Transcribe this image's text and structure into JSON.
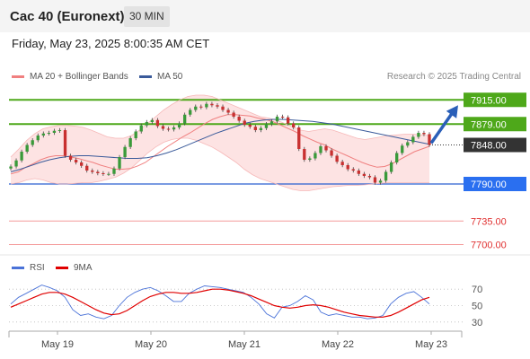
{
  "header": {
    "title": "Cac 40 (Euronext)",
    "timeframe": "30 MIN"
  },
  "timestamp": "Friday, May 23, 2025 8:00:35 AM CET",
  "legend": {
    "items": [
      {
        "label": "MA 20 + Bollinger Bands",
        "color": "#f08080"
      },
      {
        "label": "MA 50",
        "color": "#3a5a9a"
      }
    ],
    "copyright": "Research © 2025 Trading Central"
  },
  "rsi_legend": {
    "items": [
      {
        "label": "RSI",
        "color": "#4a72d8"
      },
      {
        "label": "9MA",
        "color": "#e00000"
      }
    ]
  },
  "chart_data": [
    {
      "type": "candlestick",
      "ylim": [
        7690,
        7930
      ],
      "x_ticks": [
        "May 19",
        "May 20",
        "May 21",
        "May 22",
        "May 23"
      ],
      "levels": [
        {
          "value": 7915.0,
          "label": "7915.00",
          "style": "resistance"
        },
        {
          "value": 7879.0,
          "label": "7879.00",
          "style": "resistance"
        },
        {
          "value": 7848.0,
          "label": "7848.00",
          "style": "last"
        },
        {
          "value": 7790.0,
          "label": "7790.00",
          "style": "support"
        },
        {
          "value": 7735.0,
          "label": "7735.00",
          "style": "target"
        },
        {
          "value": 7700.0,
          "label": "7700.00",
          "style": "target"
        }
      ],
      "close": [
        7816,
        7825,
        7838,
        7848,
        7855,
        7862,
        7865,
        7866,
        7869,
        7870,
        7832,
        7826,
        7822,
        7817,
        7810,
        7808,
        7806,
        7805,
        7805,
        7813,
        7830,
        7845,
        7858,
        7868,
        7877,
        7882,
        7885,
        7876,
        7872,
        7871,
        7874,
        7880,
        7893,
        7900,
        7905,
        7904,
        7909,
        7907,
        7905,
        7900,
        7896,
        7890,
        7884,
        7878,
        7875,
        7870,
        7873,
        7879,
        7883,
        7890,
        7889,
        7880,
        7874,
        7842,
        7826,
        7828,
        7836,
        7846,
        7840,
        7832,
        7823,
        7818,
        7812,
        7810,
        7805,
        7802,
        7800,
        7792,
        7795,
        7808,
        7822,
        7836,
        7847,
        7852,
        7860,
        7866,
        7864,
        7848
      ],
      "ma20": [
        7805,
        7808,
        7815,
        7820,
        7826,
        7830,
        7832,
        7832,
        7830,
        7828,
        7825,
        7822,
        7818,
        7815,
        7812,
        7812,
        7813,
        7817,
        7822,
        7830,
        7838,
        7846,
        7853,
        7860,
        7866,
        7873,
        7880,
        7886,
        7890,
        7893,
        7893,
        7892,
        7891,
        7888,
        7886,
        7883,
        7878,
        7873,
        7868,
        7862,
        7857,
        7852,
        7848,
        7842,
        7837,
        7832,
        7827,
        7822,
        7818,
        7815,
        7816,
        7820,
        7826,
        7832,
        7838,
        7842,
        7846
      ],
      "ma50": [
        7808,
        7812,
        7817,
        7822,
        7826,
        7829,
        7831,
        7832,
        7832,
        7831,
        7830,
        7829,
        7828,
        7828,
        7829,
        7832,
        7836,
        7841,
        7847,
        7853,
        7859,
        7865,
        7870,
        7875,
        7880,
        7883,
        7885,
        7886,
        7886,
        7885,
        7884,
        7883,
        7881,
        7879,
        7876,
        7873,
        7870,
        7867,
        7864,
        7861,
        7858,
        7855,
        7852,
        7849
      ],
      "bb_upper": [
        7830,
        7842,
        7855,
        7865,
        7872,
        7875,
        7877,
        7877,
        7876,
        7874,
        7870,
        7865,
        7860,
        7858,
        7858,
        7862,
        7870,
        7880,
        7890,
        7900,
        7908,
        7915,
        7920,
        7922,
        7922,
        7920,
        7915,
        7910,
        7905,
        7900,
        7895,
        7890,
        7888,
        7885,
        7880,
        7875,
        7870,
        7868,
        7870,
        7872,
        7870,
        7866,
        7862,
        7858,
        7856,
        7858,
        7860,
        7862,
        7863,
        7864,
        7864,
        7863,
        7862
      ],
      "bb_lower": [
        7790,
        7792,
        7796,
        7798,
        7796,
        7792,
        7790,
        7790,
        7791,
        7792,
        7792,
        7794,
        7797,
        7800,
        7806,
        7814,
        7825,
        7836,
        7845,
        7852,
        7856,
        7858,
        7858,
        7855,
        7850,
        7845,
        7838,
        7830,
        7822,
        7812,
        7804,
        7798,
        7794,
        7790,
        7786,
        7782,
        7780,
        7780,
        7782,
        7784,
        7786,
        7787,
        7788,
        7788,
        7789,
        7790,
        7791,
        7792,
        7792,
        7792,
        7792,
        7792,
        7792
      ]
    },
    {
      "type": "line",
      "name": "RSI",
      "ylim": [
        20,
        80
      ],
      "y_ticks": [
        70,
        50,
        30
      ],
      "series": [
        {
          "name": "RSI",
          "color": "#4a72d8",
          "values": [
            52,
            60,
            65,
            70,
            75,
            72,
            68,
            60,
            45,
            38,
            40,
            36,
            34,
            38,
            50,
            60,
            66,
            70,
            72,
            68,
            62,
            55,
            55,
            65,
            70,
            74,
            73,
            72,
            70,
            68,
            66,
            60,
            52,
            40,
            35,
            48,
            50,
            55,
            62,
            57,
            42,
            38,
            40,
            38,
            36,
            36,
            34,
            35,
            38,
            52,
            60,
            65,
            67,
            60,
            52
          ]
        },
        {
          "name": "9MA",
          "color": "#e00000",
          "values": [
            48,
            52,
            56,
            60,
            64,
            66,
            66,
            64,
            60,
            55,
            50,
            45,
            41,
            39,
            40,
            44,
            50,
            56,
            61,
            64,
            66,
            66,
            65,
            65,
            66,
            68,
            70,
            70,
            69,
            67,
            65,
            62,
            58,
            54,
            50,
            48,
            47,
            48,
            50,
            51,
            50,
            48,
            45,
            42,
            40,
            38,
            37,
            36,
            36,
            38,
            42,
            47,
            52,
            57,
            60
          ]
        }
      ]
    }
  ]
}
